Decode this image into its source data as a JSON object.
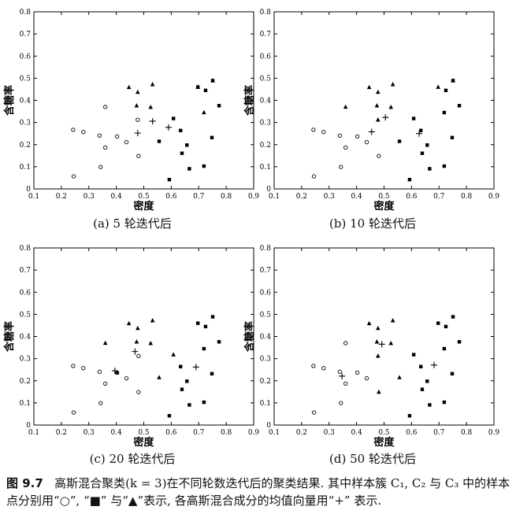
{
  "figure": {
    "caption_label": "图 9.7",
    "caption_text": "高斯混合聚类(k = 3)在不同轮数迭代后的聚类结果. 其中样本簇 C₁, C₂ 与 C₃ 中的样本点分别用“○”, “■” 与“▲”表示, 各高斯混合成分的均值向量用“+” 表示."
  },
  "chart_data": [
    {
      "type": "scatter",
      "subcaption": "(a) 5 轮迭代后",
      "xlabel": "密度",
      "ylabel": "含糖率",
      "xlim": [
        0.1,
        0.9
      ],
      "ylim": [
        0,
        0.8
      ],
      "xticks": [
        "0.1",
        "0.2",
        "0.3",
        "0.4",
        "0.5",
        "0.6",
        "0.7",
        "0.8",
        "0.9"
      ],
      "yticks": [
        "0",
        "0.1",
        "0.2",
        "0.3",
        "0.4",
        "0.5",
        "0.6",
        "0.7",
        "0.8"
      ],
      "grid": false,
      "series": [
        {
          "marker": "circle",
          "points": [
            [
              0.243,
              0.267
            ],
            [
              0.245,
              0.057
            ],
            [
              0.28,
              0.257
            ],
            [
              0.343,
              0.099
            ],
            [
              0.339,
              0.241
            ],
            [
              0.36,
              0.37
            ],
            [
              0.36,
              0.187
            ],
            [
              0.403,
              0.237
            ],
            [
              0.437,
              0.211
            ],
            [
              0.478,
              0.312
            ],
            [
              0.481,
              0.149
            ]
          ]
        },
        {
          "marker": "square",
          "points": [
            [
              0.556,
              0.215
            ],
            [
              0.593,
              0.042
            ],
            [
              0.608,
              0.318
            ],
            [
              0.634,
              0.264
            ],
            [
              0.639,
              0.161
            ],
            [
              0.657,
              0.198
            ],
            [
              0.666,
              0.091
            ],
            [
              0.697,
              0.46
            ],
            [
              0.719,
              0.103
            ],
            [
              0.725,
              0.445
            ],
            [
              0.748,
              0.232
            ],
            [
              0.751,
              0.489
            ],
            [
              0.774,
              0.376
            ]
          ]
        },
        {
          "marker": "triangle",
          "points": [
            [
              0.446,
              0.459
            ],
            [
              0.474,
              0.376
            ],
            [
              0.478,
              0.437
            ],
            [
              0.525,
              0.369
            ],
            [
              0.532,
              0.472
            ],
            [
              0.697,
              0.46
            ],
            [
              0.719,
              0.345
            ],
            [
              0.751,
              0.489
            ]
          ]
        },
        {
          "marker": "plus",
          "points": [
            [
              0.478,
              0.252
            ],
            [
              0.532,
              0.306
            ],
            [
              0.59,
              0.278
            ]
          ]
        }
      ]
    },
    {
      "type": "scatter",
      "subcaption": "(b) 10 轮迭代后",
      "xlabel": "密度",
      "ylabel": "含糖率",
      "xlim": [
        0.1,
        0.9
      ],
      "ylim": [
        0,
        0.8
      ],
      "xticks": [
        "0.1",
        "0.2",
        "0.3",
        "0.4",
        "0.5",
        "0.6",
        "0.7",
        "0.8",
        "0.9"
      ],
      "yticks": [
        "0",
        "0.1",
        "0.2",
        "0.3",
        "0.4",
        "0.5",
        "0.6",
        "0.7",
        "0.8"
      ],
      "grid": false,
      "series": [
        {
          "marker": "circle",
          "points": [
            [
              0.243,
              0.267
            ],
            [
              0.245,
              0.057
            ],
            [
              0.28,
              0.257
            ],
            [
              0.343,
              0.099
            ],
            [
              0.339,
              0.241
            ],
            [
              0.36,
              0.187
            ],
            [
              0.403,
              0.237
            ],
            [
              0.437,
              0.211
            ],
            [
              0.481,
              0.149
            ]
          ]
        },
        {
          "marker": "square",
          "points": [
            [
              0.556,
              0.215
            ],
            [
              0.593,
              0.042
            ],
            [
              0.608,
              0.318
            ],
            [
              0.634,
              0.264
            ],
            [
              0.639,
              0.161
            ],
            [
              0.657,
              0.198
            ],
            [
              0.666,
              0.091
            ],
            [
              0.719,
              0.103
            ],
            [
              0.725,
              0.445
            ],
            [
              0.748,
              0.232
            ],
            [
              0.751,
              0.489
            ],
            [
              0.774,
              0.376
            ],
            [
              0.719,
              0.345
            ]
          ]
        },
        {
          "marker": "triangle",
          "points": [
            [
              0.36,
              0.37
            ],
            [
              0.446,
              0.459
            ],
            [
              0.474,
              0.376
            ],
            [
              0.478,
              0.437
            ],
            [
              0.478,
              0.312
            ],
            [
              0.525,
              0.369
            ],
            [
              0.532,
              0.472
            ],
            [
              0.697,
              0.46
            ],
            [
              0.751,
              0.489
            ]
          ]
        },
        {
          "marker": "plus",
          "points": [
            [
              0.455,
              0.258
            ],
            [
              0.505,
              0.323
            ],
            [
              0.628,
              0.25
            ]
          ]
        }
      ]
    },
    {
      "type": "scatter",
      "subcaption": "(c) 20 轮迭代后",
      "xlabel": "密度",
      "ylabel": "含糖率",
      "xlim": [
        0.1,
        0.9
      ],
      "ylim": [
        0,
        0.8
      ],
      "xticks": [
        "0.1",
        "0.2",
        "0.3",
        "0.4",
        "0.5",
        "0.6",
        "0.7",
        "0.8",
        "0.9"
      ],
      "yticks": [
        "0",
        "0.1",
        "0.2",
        "0.3",
        "0.4",
        "0.5",
        "0.6",
        "0.7",
        "0.8"
      ],
      "grid": false,
      "series": [
        {
          "marker": "circle",
          "points": [
            [
              0.243,
              0.267
            ],
            [
              0.245,
              0.057
            ],
            [
              0.28,
              0.257
            ],
            [
              0.343,
              0.099
            ],
            [
              0.339,
              0.241
            ],
            [
              0.36,
              0.187
            ],
            [
              0.403,
              0.237
            ],
            [
              0.437,
              0.211
            ],
            [
              0.481,
              0.149
            ],
            [
              0.481,
              0.312
            ]
          ]
        },
        {
          "marker": "square",
          "points": [
            [
              0.593,
              0.042
            ],
            [
              0.634,
              0.264
            ],
            [
              0.639,
              0.161
            ],
            [
              0.657,
              0.198
            ],
            [
              0.666,
              0.091
            ],
            [
              0.697,
              0.46
            ],
            [
              0.719,
              0.103
            ],
            [
              0.719,
              0.345
            ],
            [
              0.725,
              0.445
            ],
            [
              0.748,
              0.232
            ],
            [
              0.751,
              0.489
            ],
            [
              0.774,
              0.376
            ]
          ]
        },
        {
          "marker": "triangle",
          "points": [
            [
              0.36,
              0.37
            ],
            [
              0.403,
              0.237
            ],
            [
              0.446,
              0.459
            ],
            [
              0.474,
              0.376
            ],
            [
              0.478,
              0.437
            ],
            [
              0.525,
              0.369
            ],
            [
              0.532,
              0.472
            ],
            [
              0.556,
              0.215
            ],
            [
              0.608,
              0.318
            ]
          ]
        },
        {
          "marker": "plus",
          "points": [
            [
              0.395,
              0.245
            ],
            [
              0.468,
              0.332
            ],
            [
              0.69,
              0.262
            ]
          ]
        }
      ]
    },
    {
      "type": "scatter",
      "subcaption": "(d) 50 轮迭代后",
      "xlabel": "密度",
      "ylabel": "含糖率",
      "xlim": [
        0.1,
        0.9
      ],
      "ylim": [
        0,
        0.8
      ],
      "xticks": [
        "0.1",
        "0.2",
        "0.3",
        "0.4",
        "0.5",
        "0.6",
        "0.7",
        "0.8",
        "0.9"
      ],
      "yticks": [
        "0",
        "0.1",
        "0.2",
        "0.3",
        "0.4",
        "0.5",
        "0.6",
        "0.7",
        "0.8"
      ],
      "grid": false,
      "series": [
        {
          "marker": "circle",
          "points": [
            [
              0.243,
              0.267
            ],
            [
              0.245,
              0.057
            ],
            [
              0.28,
              0.257
            ],
            [
              0.343,
              0.099
            ],
            [
              0.339,
              0.241
            ],
            [
              0.36,
              0.37
            ],
            [
              0.36,
              0.187
            ],
            [
              0.403,
              0.237
            ],
            [
              0.437,
              0.211
            ]
          ]
        },
        {
          "marker": "square",
          "points": [
            [
              0.593,
              0.042
            ],
            [
              0.608,
              0.318
            ],
            [
              0.634,
              0.264
            ],
            [
              0.639,
              0.161
            ],
            [
              0.657,
              0.198
            ],
            [
              0.666,
              0.091
            ],
            [
              0.697,
              0.46
            ],
            [
              0.719,
              0.103
            ],
            [
              0.719,
              0.345
            ],
            [
              0.725,
              0.445
            ],
            [
              0.748,
              0.232
            ],
            [
              0.751,
              0.489
            ],
            [
              0.774,
              0.376
            ]
          ]
        },
        {
          "marker": "triangle",
          "points": [
            [
              0.446,
              0.459
            ],
            [
              0.474,
              0.376
            ],
            [
              0.478,
              0.437
            ],
            [
              0.478,
              0.312
            ],
            [
              0.481,
              0.149
            ],
            [
              0.525,
              0.369
            ],
            [
              0.532,
              0.472
            ],
            [
              0.556,
              0.215
            ]
          ]
        },
        {
          "marker": "plus",
          "points": [
            [
              0.347,
              0.221
            ],
            [
              0.492,
              0.365
            ],
            [
              0.682,
              0.271
            ]
          ]
        }
      ]
    }
  ]
}
